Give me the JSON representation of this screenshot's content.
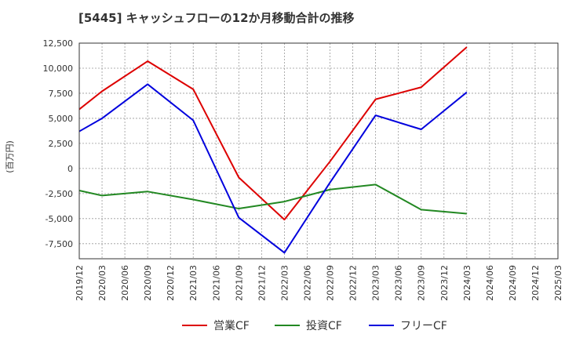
{
  "chart_data": {
    "type": "line",
    "title": "[5445]  キャッシュフローの12か月移動合計の推移",
    "ylabel": "(百万円)",
    "xlabel": "",
    "ylim": [
      -9000,
      12500
    ],
    "yticks": [
      12500,
      10000,
      7500,
      5000,
      2500,
      0,
      -2500,
      -5000,
      -7500
    ],
    "ytick_labels": [
      "12,500",
      "10,000",
      "7,500",
      "5,000",
      "2,500",
      "0",
      "-2,500",
      "-5,000",
      "-7,500"
    ],
    "categories": [
      "2019/12",
      "2020/03",
      "2020/06",
      "2020/09",
      "2020/12",
      "2021/03",
      "2021/06",
      "2021/09",
      "2021/12",
      "2022/03",
      "2022/06",
      "2022/09",
      "2022/12",
      "2023/03",
      "2023/06",
      "2023/09",
      "2023/12",
      "2024/03",
      "2024/06",
      "2024/09",
      "2024/12",
      "2025/03"
    ],
    "grid": true,
    "legend_position": "bottom",
    "series": [
      {
        "name": "営業CF",
        "color": "#dd0000",
        "points": [
          {
            "x": "2019/12",
            "y": 5900
          },
          {
            "x": "2020/03",
            "y": 7700
          },
          {
            "x": "2020/09",
            "y": 10700
          },
          {
            "x": "2021/03",
            "y": 7900
          },
          {
            "x": "2021/09",
            "y": -900
          },
          {
            "x": "2022/03",
            "y": -5100
          },
          {
            "x": "2022/09",
            "y": 700
          },
          {
            "x": "2023/03",
            "y": 6900
          },
          {
            "x": "2023/09",
            "y": 8100
          },
          {
            "x": "2024/03",
            "y": 12100
          }
        ]
      },
      {
        "name": "投資CF",
        "color": "#228822",
        "points": [
          {
            "x": "2019/12",
            "y": -2200
          },
          {
            "x": "2020/03",
            "y": -2700
          },
          {
            "x": "2020/09",
            "y": -2300
          },
          {
            "x": "2021/03",
            "y": -3100
          },
          {
            "x": "2021/09",
            "y": -4000
          },
          {
            "x": "2022/03",
            "y": -3300
          },
          {
            "x": "2022/09",
            "y": -2100
          },
          {
            "x": "2023/03",
            "y": -1600
          },
          {
            "x": "2023/09",
            "y": -4100
          },
          {
            "x": "2024/03",
            "y": -4500
          }
        ]
      },
      {
        "name": "フリーCF",
        "color": "#0000dd",
        "points": [
          {
            "x": "2019/12",
            "y": 3700
          },
          {
            "x": "2020/03",
            "y": 5000
          },
          {
            "x": "2020/09",
            "y": 8400
          },
          {
            "x": "2021/03",
            "y": 4800
          },
          {
            "x": "2021/09",
            "y": -4900
          },
          {
            "x": "2022/03",
            "y": -8400
          },
          {
            "x": "2022/09",
            "y": -1400
          },
          {
            "x": "2023/03",
            "y": 5300
          },
          {
            "x": "2023/09",
            "y": 3900
          },
          {
            "x": "2024/03",
            "y": 7600
          }
        ]
      }
    ]
  }
}
